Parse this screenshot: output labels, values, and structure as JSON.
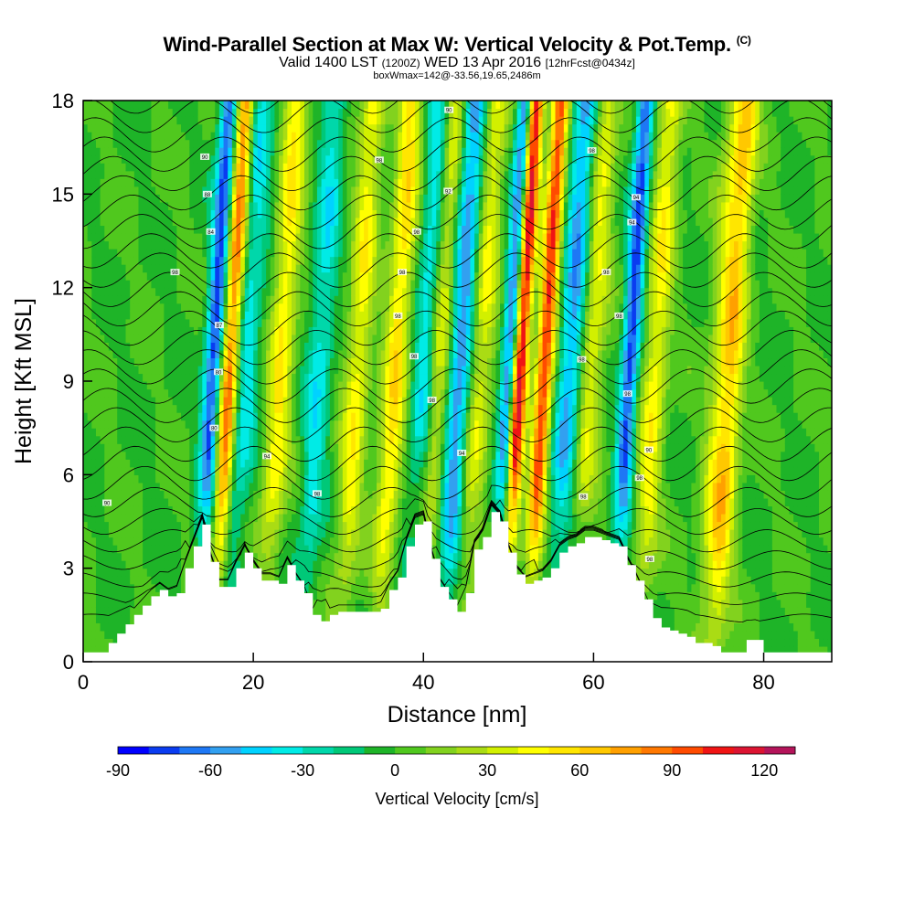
{
  "title": {
    "main": "Wind-Parallel Section at Max W: Vertical Velocity & Pot.Temp.",
    "copyright": "(C)",
    "valid_prefix": "Valid 1400 LST",
    "valid_utc": "(1200Z)",
    "valid_date": "WED 13 Apr 2016",
    "forecast": "[12hrFcst@0434z]",
    "box": "boxWmax=142@-33.56,19.65,2486m"
  },
  "chart_data": {
    "type": "heatmap",
    "xlabel": "Distance [nm]",
    "ylabel": "Height [Kft MSL]",
    "xlim": [
      0,
      88
    ],
    "ylim": [
      0,
      18
    ],
    "xticks": [
      0,
      20,
      40,
      60,
      80
    ],
    "xtick_labels": [
      "0",
      "20",
      "40",
      "60",
      "80"
    ],
    "yticks": [
      0,
      3,
      6,
      9,
      12,
      15,
      18
    ],
    "ytick_labels": [
      "0",
      "3",
      "6",
      "9",
      "12",
      "15",
      "18"
    ],
    "field": "Vertical Velocity [cm/s]",
    "overlay": "Potential temperature contours",
    "colorbar": {
      "label": "Vertical Velocity [cm/s]",
      "min": -90,
      "max": 130,
      "step": 10,
      "ticks": [
        -90,
        -60,
        -30,
        0,
        30,
        60,
        90,
        120
      ],
      "tick_labels": [
        "-90",
        "-60",
        "-30",
        "0",
        "30",
        "60",
        "90",
        "120"
      ],
      "colors": [
        "#0000ff",
        "#0a3cf0",
        "#1e78f5",
        "#32a0f0",
        "#00d2ff",
        "#00ebe6",
        "#00d7aa",
        "#00c878",
        "#1eb428",
        "#50c81e",
        "#82d21e",
        "#aadc14",
        "#d2f000",
        "#ffff00",
        "#ffe600",
        "#ffc800",
        "#ffa000",
        "#ff7800",
        "#ff4b00",
        "#f01414",
        "#dc1432",
        "#b4145a"
      ]
    },
    "updrafts": [
      {
        "x": 16.5,
        "peak": 85
      },
      {
        "x": 22.5,
        "peak": 50
      },
      {
        "x": 31.5,
        "peak": 45
      },
      {
        "x": 36,
        "peak": 55
      },
      {
        "x": 41,
        "peak": 45
      },
      {
        "x": 46,
        "peak": 40
      },
      {
        "x": 50.5,
        "peak": 135
      },
      {
        "x": 53.5,
        "peak": 100
      },
      {
        "x": 59,
        "peak": 40
      },
      {
        "x": 66.5,
        "peak": 45
      },
      {
        "x": 74,
        "peak": 25
      },
      {
        "x": 75.5,
        "peak": 55
      }
    ],
    "downdrafts": [
      {
        "x": 14.5,
        "peak": -75
      },
      {
        "x": 18.5,
        "peak": -35
      },
      {
        "x": 27,
        "peak": -35
      },
      {
        "x": 39.5,
        "peak": -45
      },
      {
        "x": 43.5,
        "peak": -60
      },
      {
        "x": 49.5,
        "peak": -90
      },
      {
        "x": 56.5,
        "peak": -55
      },
      {
        "x": 63.5,
        "peak": -75
      }
    ],
    "terrain": {
      "x": [
        0,
        2,
        3,
        4,
        5,
        6,
        7,
        8,
        9,
        10,
        11,
        12,
        13,
        14,
        15,
        16,
        17,
        18,
        19,
        20,
        21,
        22,
        23,
        24,
        25,
        26,
        27,
        28,
        29,
        30,
        31,
        32,
        33,
        34,
        35,
        36,
        37,
        38,
        39,
        40,
        41,
        42,
        43,
        44,
        45,
        46,
        47,
        48,
        49,
        50,
        51,
        52,
        53,
        54,
        55,
        56,
        57,
        58,
        59,
        60,
        61,
        62,
        63,
        64,
        65,
        66,
        67,
        68,
        69,
        70,
        71,
        72,
        73,
        74,
        75,
        76,
        77,
        78,
        79,
        80,
        81,
        82,
        83,
        84,
        85,
        86,
        87,
        88
      ],
      "y": [
        0.3,
        0.3,
        0.6,
        0.9,
        1.2,
        1.5,
        1.8,
        2.1,
        2.3,
        2.1,
        2.2,
        3.0,
        3.7,
        4.4,
        3.2,
        2.4,
        2.4,
        3.0,
        3.5,
        3.0,
        2.6,
        2.6,
        2.5,
        3.1,
        2.6,
        2.2,
        1.5,
        1.3,
        1.5,
        1.6,
        1.6,
        1.6,
        1.6,
        1.6,
        1.7,
        2.3,
        2.7,
        3.7,
        4.4,
        4.5,
        3.3,
        2.4,
        2.0,
        1.6,
        2.2,
        3.6,
        4.0,
        4.8,
        4.5,
        3.5,
        2.8,
        2.5,
        2.6,
        2.7,
        3.0,
        3.5,
        3.7,
        3.8,
        4.0,
        4.0,
        3.9,
        3.8,
        3.7,
        3.1,
        2.6,
        2.0,
        1.4,
        1.1,
        1.0,
        0.9,
        0.8,
        0.6,
        0.6,
        0.5,
        0.3,
        0.3,
        0.3,
        0.7,
        0.7,
        0.3,
        0.3,
        0.3,
        0.3,
        0.3,
        0.3,
        0.3,
        0.3,
        0.3
      ]
    },
    "contour_labels": [
      {
        "x": 14.3,
        "y": 16.2,
        "text": "90"
      },
      {
        "x": 14.6,
        "y": 15.0,
        "text": "88"
      },
      {
        "x": 15.0,
        "y": 13.8,
        "text": "84"
      },
      {
        "x": 10.8,
        "y": 12.5,
        "text": "98"
      },
      {
        "x": 16.0,
        "y": 10.8,
        "text": "87"
      },
      {
        "x": 15.9,
        "y": 9.3,
        "text": "80"
      },
      {
        "x": 15.4,
        "y": 7.5,
        "text": "80"
      },
      {
        "x": 21.6,
        "y": 6.6,
        "text": "94"
      },
      {
        "x": 27.5,
        "y": 5.4,
        "text": "98"
      },
      {
        "x": 2.8,
        "y": 5.1,
        "text": "90"
      },
      {
        "x": 34.8,
        "y": 16.1,
        "text": "98"
      },
      {
        "x": 39.2,
        "y": 13.8,
        "text": "98"
      },
      {
        "x": 37.5,
        "y": 12.5,
        "text": "98"
      },
      {
        "x": 37.0,
        "y": 11.1,
        "text": "98"
      },
      {
        "x": 38.9,
        "y": 9.8,
        "text": "98"
      },
      {
        "x": 41.0,
        "y": 8.4,
        "text": "98"
      },
      {
        "x": 42.9,
        "y": 15.1,
        "text": "92"
      },
      {
        "x": 43.0,
        "y": 17.7,
        "text": "90"
      },
      {
        "x": 44.5,
        "y": 6.7,
        "text": "94"
      },
      {
        "x": 58.8,
        "y": 5.3,
        "text": "98"
      },
      {
        "x": 58.6,
        "y": 9.7,
        "text": "98"
      },
      {
        "x": 59.8,
        "y": 16.4,
        "text": "98"
      },
      {
        "x": 61.5,
        "y": 12.5,
        "text": "98"
      },
      {
        "x": 63.0,
        "y": 11.1,
        "text": "98"
      },
      {
        "x": 64.0,
        "y": 8.6,
        "text": "98"
      },
      {
        "x": 64.5,
        "y": 14.1,
        "text": "94"
      },
      {
        "x": 65.0,
        "y": 14.9,
        "text": "94"
      },
      {
        "x": 66.5,
        "y": 6.8,
        "text": "90"
      },
      {
        "x": 65.4,
        "y": 5.9,
        "text": "98"
      },
      {
        "x": 66.6,
        "y": 3.3,
        "text": "98"
      }
    ]
  }
}
